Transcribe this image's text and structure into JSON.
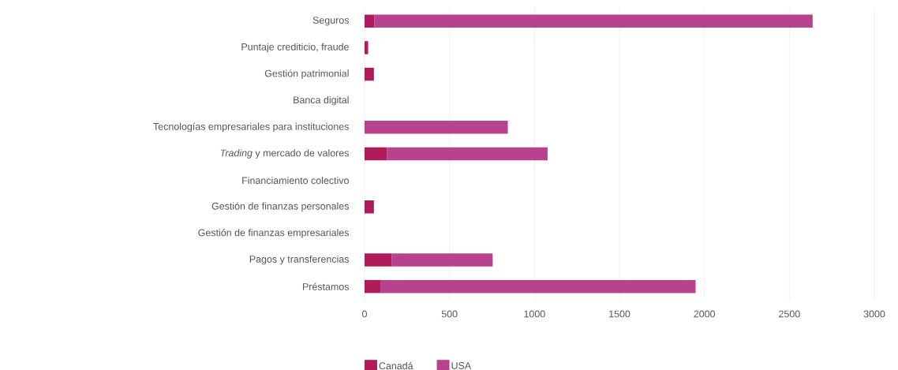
{
  "chart_data": {
    "type": "bar",
    "orientation": "horizontal",
    "stacked": true,
    "categories": [
      "Seguros",
      "Puntaje crediticio, fraude",
      "Gestión patrimonial",
      "Banca digital",
      "Tecnologías empresariales para instituciones",
      "*Trading* y mercado de valores",
      "Financiamiento colectivo",
      "Gestión de finanzas personales",
      "Gestión de finanzas empresariales",
      "Pagos y transferencias",
      "Préstamos"
    ],
    "series": [
      {
        "name": "Canadá",
        "color": "#b01c5b",
        "values": [
          57,
          21,
          55,
          0,
          0,
          132,
          0,
          55,
          0,
          159,
          93
        ]
      },
      {
        "name": "USA",
        "color": "#b8428e",
        "values": [
          2580,
          0,
          0,
          0,
          843,
          945,
          0,
          0,
          0,
          595,
          1855
        ]
      }
    ],
    "xlim": [
      0,
      3000
    ],
    "xticks": [
      0,
      500,
      1000,
      1500,
      2000,
      2500,
      3000
    ],
    "grid": "x",
    "legend": "bottom left"
  }
}
